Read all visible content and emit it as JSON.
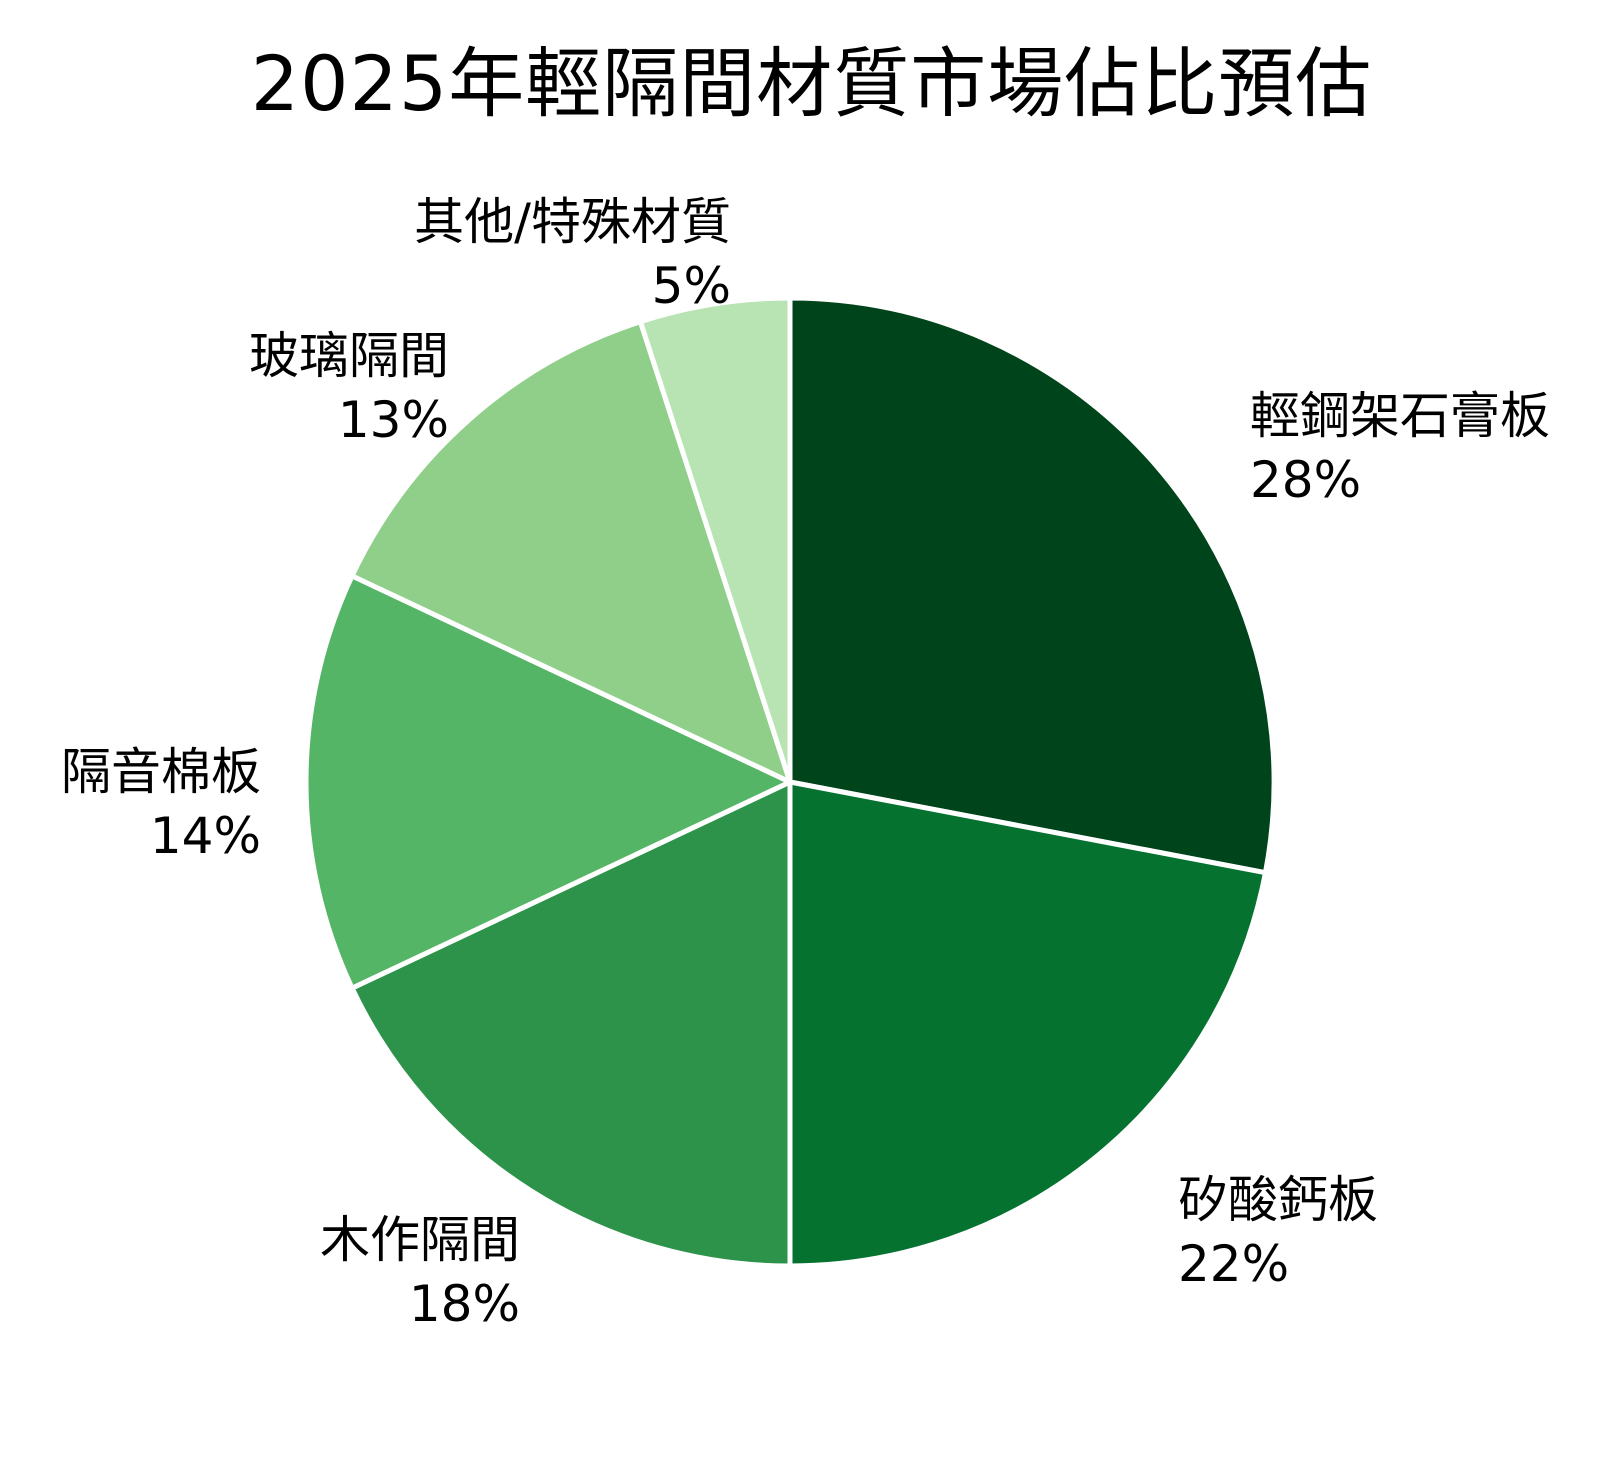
{
  "chart_data": {
    "type": "pie",
    "title": "2025年輕隔間材質市場佔比預估",
    "categories": [
      "輕鋼架石膏板",
      "矽酸鈣板",
      "木作隔間",
      "隔音棉板",
      "玻璃隔間",
      "其他/特殊材質"
    ],
    "values": [
      28,
      22,
      18,
      14,
      13,
      5
    ],
    "unit": "%",
    "colors": [
      "#00441b",
      "#067230",
      "#2d934b",
      "#55b567",
      "#8fcf89",
      "#b8e3b2"
    ],
    "start_angle": "12 o'clock",
    "direction": "clockwise",
    "legend": "none (direct labels)"
  },
  "title": "2025年輕隔間材質市場佔比預估",
  "labels": [
    {
      "name": "輕鋼架石膏板",
      "pct": "28%"
    },
    {
      "name": "矽酸鈣板",
      "pct": "22%"
    },
    {
      "name": "木作隔間",
      "pct": "18%"
    },
    {
      "name": "隔音棉板",
      "pct": "14%"
    },
    {
      "name": "玻璃隔間",
      "pct": "13%"
    },
    {
      "name": "其他/特殊材質",
      "pct": "5%"
    }
  ]
}
